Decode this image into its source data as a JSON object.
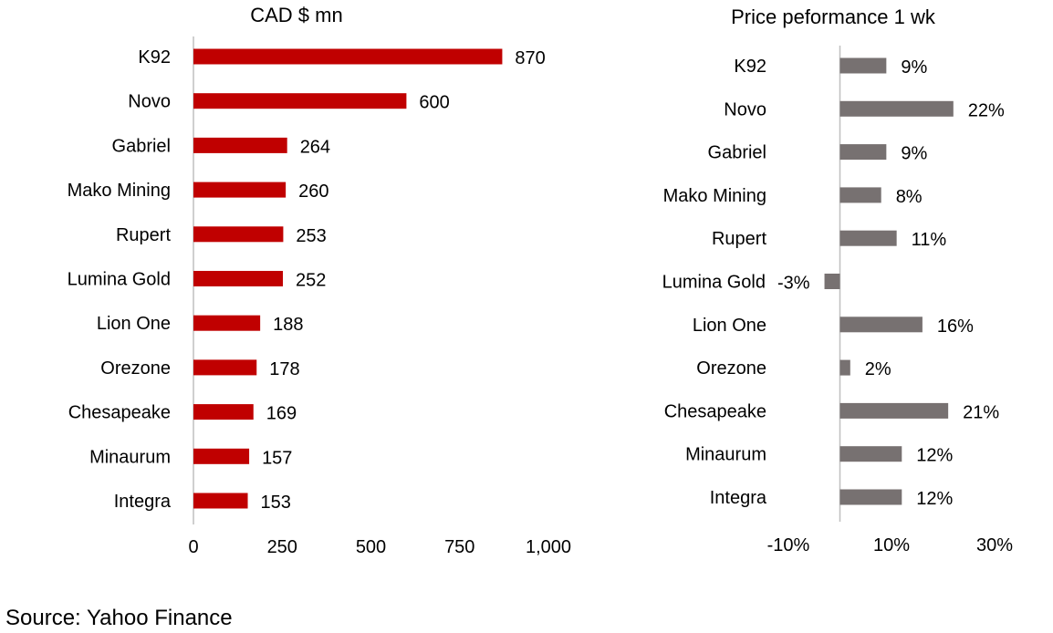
{
  "source": "Source: Yahoo Finance",
  "colors": {
    "left_bar": "#c00000",
    "right_bar": "#777171",
    "axis": "#bfbfbf"
  },
  "chart_data": [
    {
      "type": "bar",
      "orientation": "horizontal",
      "title": "CAD $ mn",
      "categories": [
        "K92",
        "Novo",
        "Gabriel",
        "Mako Mining",
        "Rupert",
        "Lumina Gold",
        "Lion One",
        "Orezone",
        "Chesapeake",
        "Minaurum",
        "Integra"
      ],
      "values": [
        870,
        600,
        264,
        260,
        253,
        252,
        188,
        178,
        169,
        157,
        153
      ],
      "value_labels": [
        "870",
        "600",
        "264",
        "260",
        "253",
        "252",
        "188",
        "178",
        "169",
        "157",
        "153"
      ],
      "xlim": [
        0,
        1000
      ],
      "xticks": [
        0,
        250,
        500,
        750,
        1000
      ],
      "xtick_labels": [
        "0",
        "250",
        "500",
        "750",
        "1,000"
      ],
      "grid": false
    },
    {
      "type": "bar",
      "orientation": "horizontal",
      "title": "Price peformance 1 wk",
      "categories": [
        "K92",
        "Novo",
        "Gabriel",
        "Mako Mining",
        "Rupert",
        "Lumina Gold",
        "Lion One",
        "Orezone",
        "Chesapeake",
        "Minaurum",
        "Integra"
      ],
      "values": [
        9,
        22,
        9,
        8,
        11,
        -3,
        16,
        2,
        21,
        12,
        12
      ],
      "value_labels": [
        "9%",
        "22%",
        "9%",
        "8%",
        "11%",
        "-3%",
        "16%",
        "2%",
        "21%",
        "12%",
        "12%"
      ],
      "xlim": [
        -10,
        30
      ],
      "xticks": [
        -10,
        10,
        30
      ],
      "xtick_labels": [
        "-10%",
        "10%",
        "30%"
      ],
      "grid": false
    }
  ]
}
